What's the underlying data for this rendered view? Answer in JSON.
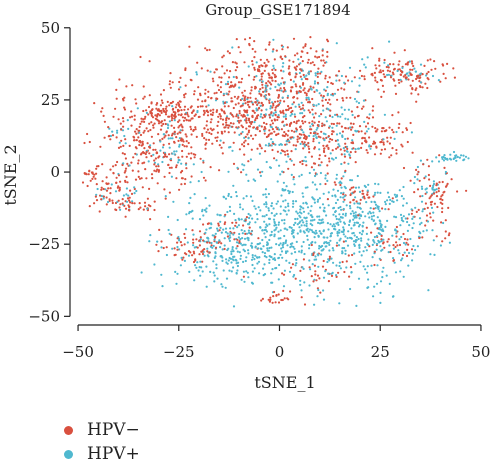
{
  "chart_data": {
    "type": "scatter",
    "title": "Group_GSE171894",
    "xlabel": "tSNE_1",
    "ylabel": "tSNE_2",
    "xlim": [
      -52,
      52
    ],
    "ylim": [
      -53,
      52
    ],
    "xticks": [
      -50,
      -25,
      0,
      25,
      50
    ],
    "yticks": [
      -50,
      -25,
      0,
      25,
      50
    ],
    "grid": false,
    "legend": "bottom-left",
    "series": [
      {
        "name": "HPV−",
        "color": "#d9503f",
        "clusters": [
          {
            "x": -1,
            "y": 28,
            "sx": 11,
            "sy": 10,
            "n": 520
          },
          {
            "x": -10,
            "y": 18,
            "sx": 8,
            "sy": 6,
            "n": 180
          },
          {
            "x": -30,
            "y": 12,
            "sx": 7,
            "sy": 9,
            "n": 330
          },
          {
            "x": -26,
            "y": 20,
            "sx": 4,
            "sy": 2,
            "n": 60
          },
          {
            "x": 7,
            "y": 10,
            "sx": 8,
            "sy": 5,
            "n": 140
          },
          {
            "x": 24,
            "y": 12,
            "sx": 5,
            "sy": 5,
            "n": 70
          },
          {
            "x": 31,
            "y": 34,
            "sx": 5,
            "sy": 3,
            "n": 120
          },
          {
            "x": -43,
            "y": -6,
            "sx": 4,
            "sy": 5,
            "n": 55
          },
          {
            "x": -36,
            "y": -11,
            "sx": 3,
            "sy": 2,
            "n": 35
          },
          {
            "x": -47,
            "y": -1,
            "sx": 1.5,
            "sy": 1,
            "n": 15
          },
          {
            "x": -22,
            "y": -26,
            "sx": 4,
            "sy": 3,
            "n": 55
          },
          {
            "x": -12,
            "y": -22,
            "sx": 4,
            "sy": 3,
            "n": 40
          },
          {
            "x": 10,
            "y": -35,
            "sx": 6,
            "sy": 4,
            "n": 45
          },
          {
            "x": 38,
            "y": -10,
            "sx": 3,
            "sy": 6,
            "n": 75
          },
          {
            "x": 20,
            "y": -8,
            "sx": 4,
            "sy": 3,
            "n": 40
          },
          {
            "x": -1,
            "y": -44,
            "sx": 2,
            "sy": 1,
            "n": 20
          },
          {
            "x": 28,
            "y": -25,
            "sx": 4,
            "sy": 4,
            "n": 40
          }
        ]
      },
      {
        "name": "HPV+",
        "color": "#4fb8cf",
        "clusters": [
          {
            "x": 3,
            "y": -20,
            "sx": 14,
            "sy": 10,
            "n": 700
          },
          {
            "x": 22,
            "y": -18,
            "sx": 8,
            "sy": 9,
            "n": 240
          },
          {
            "x": -12,
            "y": -28,
            "sx": 6,
            "sy": 6,
            "n": 140
          },
          {
            "x": 2,
            "y": 25,
            "sx": 10,
            "sy": 9,
            "n": 210
          },
          {
            "x": 10,
            "y": 12,
            "sx": 7,
            "sy": 5,
            "n": 90
          },
          {
            "x": -30,
            "y": 10,
            "sx": 6,
            "sy": 6,
            "n": 60
          },
          {
            "x": 43,
            "y": 5,
            "sx": 2,
            "sy": 0.7,
            "n": 30
          },
          {
            "x": -41,
            "y": -8,
            "sx": 4,
            "sy": 4,
            "n": 25
          },
          {
            "x": 32,
            "y": 35,
            "sx": 4,
            "sy": 2,
            "n": 25
          },
          {
            "x": 37,
            "y": -4,
            "sx": 3,
            "sy": 4,
            "n": 25
          }
        ]
      }
    ]
  }
}
